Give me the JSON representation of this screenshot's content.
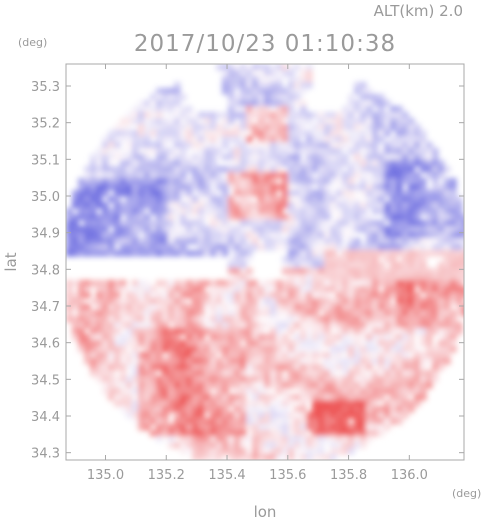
{
  "header": {
    "altitude_label": "ALT(km) 2.0",
    "timestamp": "2017/10/23 01:10:38",
    "y_unit": "(deg)",
    "x_unit": "(deg)"
  },
  "chart_data": {
    "type": "heatmap",
    "title": "2017/10/23 01:10:38",
    "subtitle": "ALT(km) 2.0",
    "xlabel": "lon",
    "ylabel": "lat",
    "x_unit": "(deg)",
    "y_unit": "(deg)",
    "xlim": [
      134.87,
      136.18
    ],
    "ylim": [
      34.28,
      35.36
    ],
    "x_ticks": [
      {
        "value": 135.0,
        "label": "135.0"
      },
      {
        "value": 135.2,
        "label": "135.2"
      },
      {
        "value": 135.4,
        "label": "135.4"
      },
      {
        "value": 135.6,
        "label": "135.6"
      },
      {
        "value": 135.8,
        "label": "135.8"
      },
      {
        "value": 136.0,
        "label": "136.0"
      }
    ],
    "y_ticks": [
      {
        "value": 34.3,
        "label": "34.3"
      },
      {
        "value": 34.4,
        "label": "34.4"
      },
      {
        "value": 34.5,
        "label": "34.5"
      },
      {
        "value": 34.6,
        "label": "34.6"
      },
      {
        "value": 34.7,
        "label": "34.7"
      },
      {
        "value": 34.8,
        "label": "34.8"
      },
      {
        "value": 34.9,
        "label": "34.9"
      },
      {
        "value": 35.0,
        "label": "35.0"
      },
      {
        "value": 35.1,
        "label": "35.1"
      },
      {
        "value": 35.2,
        "label": "35.2"
      },
      {
        "value": 35.3,
        "label": "35.3"
      }
    ],
    "grid": false,
    "radar_center": {
      "lon": 135.52,
      "lat": 34.82
    },
    "colors": {
      "positive": "#f08080",
      "negative": "#8a8ae8",
      "strong_positive": "#ee5050",
      "strong_negative": "#6a6ae0",
      "weak_positive": "#f8cccc",
      "weak_negative": "#c8c8f4",
      "axis": "#a8a8a8"
    },
    "regions": [
      {
        "lon": [
          134.87,
          135.2
        ],
        "lat": [
          34.82,
          35.05
        ],
        "level": -1
      },
      {
        "lon": [
          135.9,
          136.18
        ],
        "lat": [
          34.9,
          35.1
        ],
        "level": -1
      },
      {
        "lon": [
          135.1,
          135.45
        ],
        "lat": [
          34.35,
          34.65
        ],
        "level": 1
      },
      {
        "lon": [
          135.95,
          136.18
        ],
        "lat": [
          34.65,
          34.8
        ],
        "level": 1
      },
      {
        "lon": [
          135.4,
          135.6
        ],
        "lat": [
          34.95,
          35.08
        ],
        "level": 2
      },
      {
        "lon": [
          135.45,
          135.6
        ],
        "lat": [
          35.15,
          35.25
        ],
        "level": 2
      },
      {
        "lon": [
          135.65,
          135.85
        ],
        "lat": [
          34.35,
          34.45
        ],
        "level": 2
      }
    ]
  }
}
